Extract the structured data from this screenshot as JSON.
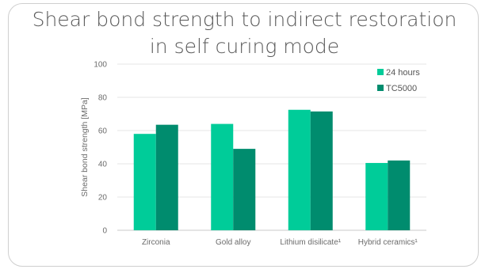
{
  "chart_data": {
    "type": "bar",
    "title_line1": "Shear bond strength to indirect restoration",
    "title_line2": "in self curing mode",
    "ylabel": "Shear bond strength [MPa]",
    "ylim": [
      0,
      100
    ],
    "yticks": [
      0,
      20,
      40,
      60,
      80,
      100
    ],
    "categories": [
      "Zirconia",
      "Gold alloy",
      "Lithium disilicate¹",
      "Hybrid ceramics¹"
    ],
    "series": [
      {
        "name": "24 hours",
        "color": "#00cc99",
        "values": [
          58,
          64,
          72.5,
          40.5
        ]
      },
      {
        "name": "TC5000",
        "color": "#008c6e",
        "values": [
          63.5,
          49,
          71.5,
          42
        ]
      }
    ],
    "grid": true,
    "legend": "top-right"
  }
}
